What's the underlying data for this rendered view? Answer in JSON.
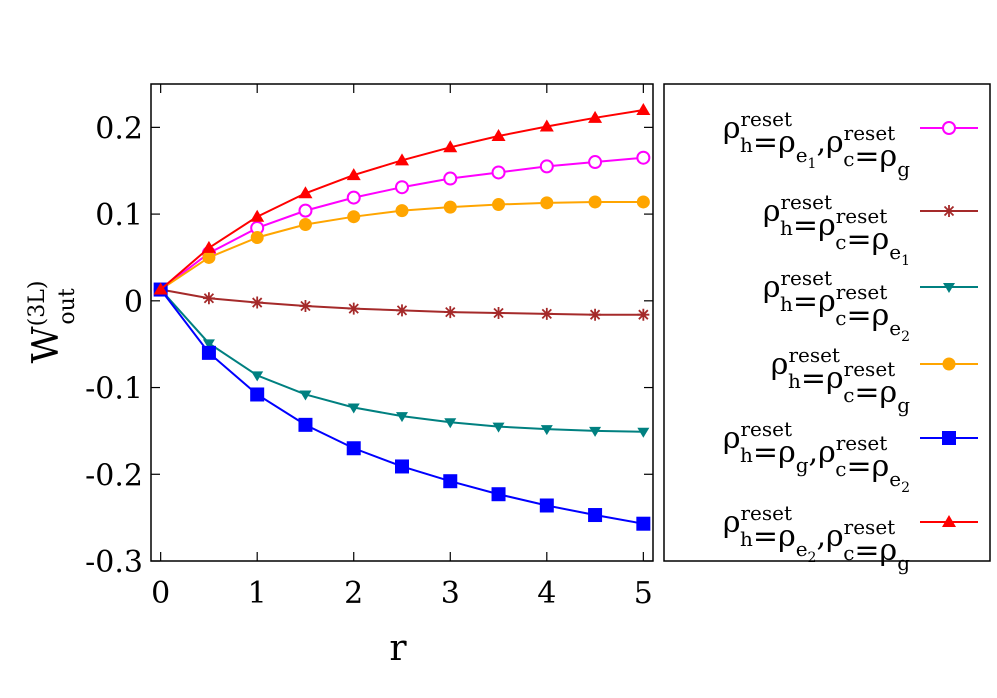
{
  "chart_data": {
    "type": "line",
    "title": "",
    "xlabel": "r",
    "ylabel": {
      "main": "W",
      "superscript": "(3L)",
      "subscript": "out"
    },
    "xlim": [
      -0.1,
      5.1
    ],
    "ylim": [
      -0.3,
      0.25
    ],
    "x_ticks": [
      "0",
      "1",
      "2",
      "3",
      "4",
      "5"
    ],
    "y_ticks": [
      "0.2",
      "0.1",
      "0",
      "-0.1",
      "-0.2",
      "-0.3"
    ],
    "grid": false,
    "legend_position": "outside-right",
    "x": [
      0,
      0.5,
      1,
      1.5,
      2,
      2.5,
      3,
      3.5,
      4,
      4.5,
      5
    ],
    "series": [
      {
        "name": "ρ_h^reset=ρ_e1, ρ_c^reset=ρ_g",
        "color": "#ff00ff",
        "marker": "open-circle",
        "values": [
          0.013,
          0.055,
          0.084,
          0.104,
          0.119,
          0.131,
          0.141,
          0.148,
          0.155,
          0.16,
          0.165
        ]
      },
      {
        "name": "ρ_h^reset=ρ_c^reset=ρ_e1",
        "color": "#a52a2a",
        "marker": "asterisk",
        "values": [
          0.013,
          0.003,
          -0.002,
          -0.006,
          -0.009,
          -0.011,
          -0.013,
          -0.014,
          -0.015,
          -0.016,
          -0.016
        ]
      },
      {
        "name": "ρ_h^reset=ρ_c^reset=ρ_e2",
        "color": "#008080",
        "marker": "down-triangle",
        "values": [
          0.013,
          -0.049,
          -0.086,
          -0.108,
          -0.123,
          -0.133,
          -0.14,
          -0.145,
          -0.148,
          -0.15,
          -0.151
        ]
      },
      {
        "name": "ρ_h^reset=ρ_c^reset=ρ_g",
        "color": "#ffa500",
        "marker": "filled-circle",
        "values": [
          0.013,
          0.05,
          0.073,
          0.088,
          0.097,
          0.104,
          0.108,
          0.111,
          0.113,
          0.114,
          0.114
        ]
      },
      {
        "name": "ρ_h^reset=ρ_g, ρ_c^reset=ρ_e2",
        "color": "#0000ff",
        "marker": "filled-square",
        "values": [
          0.013,
          -0.06,
          -0.108,
          -0.143,
          -0.17,
          -0.191,
          -0.208,
          -0.223,
          -0.236,
          -0.247,
          -0.257
        ]
      },
      {
        "name": "ρ_h^reset=ρ_e2, ρ_c^reset=ρ_g",
        "color": "#ff0000",
        "marker": "filled-up-triangle",
        "values": [
          0.013,
          0.061,
          0.097,
          0.124,
          0.145,
          0.162,
          0.177,
          0.19,
          0.201,
          0.211,
          0.22
        ]
      }
    ],
    "legend_text": {
      "rho": "ρ",
      "eq": "=",
      "reset": "reset",
      "h": "h",
      "c": "c",
      "e": "e",
      "g": "g",
      "one": "1",
      "two": "2",
      "comma": ","
    }
  }
}
